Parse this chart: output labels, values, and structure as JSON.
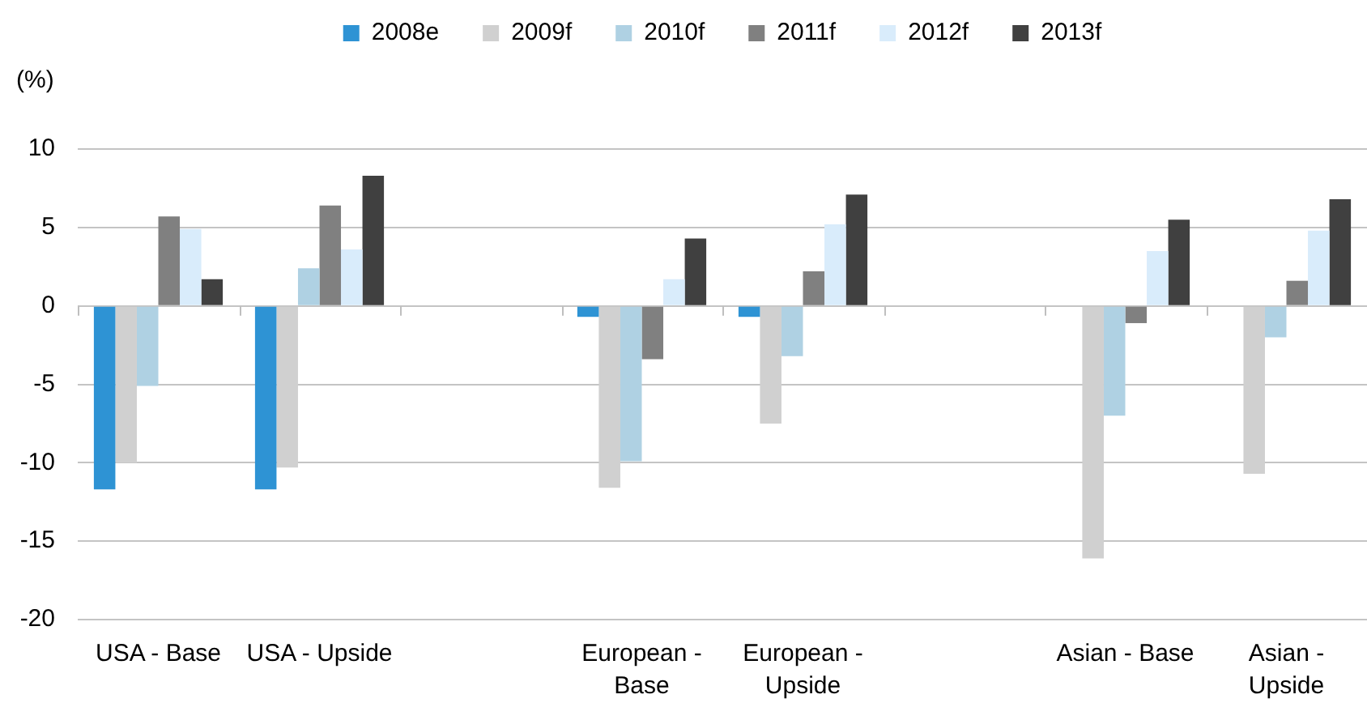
{
  "chart_data": {
    "type": "bar",
    "ylabel": "(%)",
    "categories": [
      "USA - Base",
      "USA - Upside",
      null,
      "European - Base",
      "European - Upside",
      null,
      "Asian - Base",
      "Asian - Upside"
    ],
    "series": [
      {
        "name": "2008e",
        "color": "#2e93d4",
        "values": [
          -11.7,
          -11.7,
          null,
          -0.7,
          -0.7,
          null,
          null,
          null
        ]
      },
      {
        "name": "2009f",
        "color": "#d0d0d0",
        "values": [
          -10.0,
          -10.3,
          null,
          -11.6,
          -7.5,
          null,
          -16.1,
          -10.7
        ]
      },
      {
        "name": "2010f",
        "color": "#afd1e3",
        "values": [
          -5.1,
          2.4,
          null,
          -9.9,
          -3.2,
          null,
          -7.0,
          -2.0
        ]
      },
      {
        "name": "2011f",
        "color": "#808080",
        "values": [
          5.7,
          6.4,
          null,
          -3.4,
          2.2,
          null,
          -1.1,
          1.6
        ]
      },
      {
        "name": "2012f",
        "color": "#d9ecfb",
        "values": [
          4.9,
          3.6,
          null,
          1.7,
          5.2,
          null,
          3.5,
          4.8
        ]
      },
      {
        "name": "2013f",
        "color": "#404040",
        "values": [
          1.7,
          8.3,
          null,
          4.3,
          7.1,
          null,
          5.5,
          6.8
        ]
      }
    ],
    "ylim": [
      -20,
      10
    ],
    "yticks": [
      -20,
      -15,
      -10,
      -5,
      0,
      5,
      10
    ],
    "grid": "y",
    "legend": "top"
  }
}
